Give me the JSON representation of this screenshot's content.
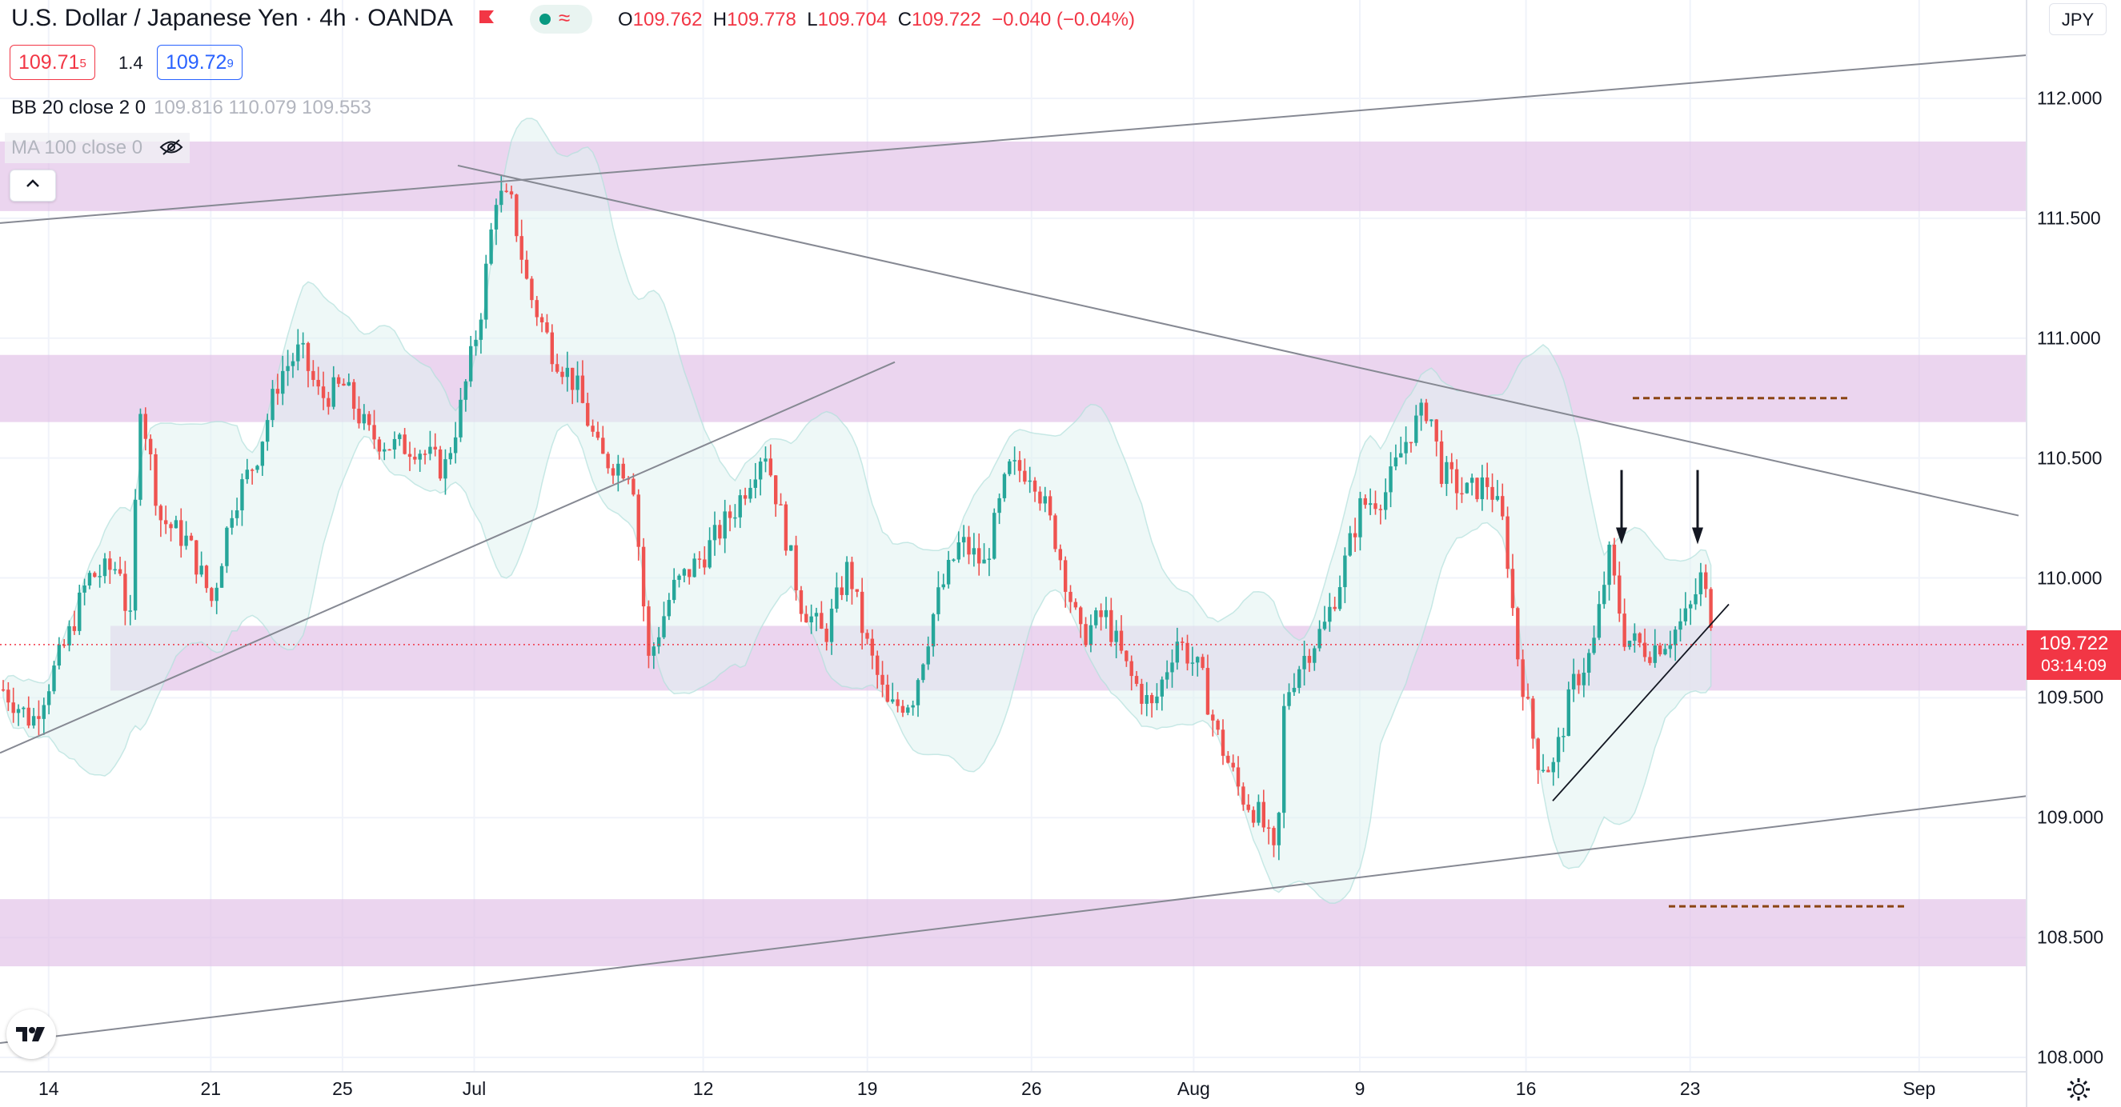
{
  "header": {
    "title": "U.S. Dollar / Japanese Yen · 4h · OANDA",
    "ohlc": {
      "open_label": "O",
      "open": "109.762",
      "high_label": "H",
      "high": "109.778",
      "low_label": "L",
      "low": "109.704",
      "close_label": "C",
      "close": "109.722",
      "change": "−0.040 (−0.04%)"
    }
  },
  "quote": {
    "bid_main": "109.71",
    "bid_sup": "5",
    "spread": "1.4",
    "ask_main": "109.72",
    "ask_sup": "9"
  },
  "indicators": {
    "bb_label": "BB 20 close 2 0",
    "bb_values": "109.816  110.079  109.553",
    "ma_label": "MA 100 close 0"
  },
  "currency": "JPY",
  "last_price": {
    "value": "109.722",
    "countdown": "03:14:09"
  },
  "colors": {
    "up": "#26a69a",
    "down": "#ef5350",
    "zone": "#e1bee7",
    "band_fill": "#e0f2f1",
    "trendline": "#868993",
    "target_line": "#8b4513"
  },
  "chart_data": {
    "type": "candlestick",
    "y_ticks": [
      "112.000",
      "111.500",
      "111.000",
      "110.500",
      "110.000",
      "109.500",
      "109.000",
      "108.500",
      "108.000"
    ],
    "ylim": [
      107.95,
      112.2
    ],
    "x_ticks": [
      {
        "label": "14",
        "pos": 0.024
      },
      {
        "label": "21",
        "pos": 0.104
      },
      {
        "label": "25",
        "pos": 0.169
      },
      {
        "label": "Jul",
        "pos": 0.234
      },
      {
        "label": "12",
        "pos": 0.347
      },
      {
        "label": "19",
        "pos": 0.428
      },
      {
        "label": "26",
        "pos": 0.509
      },
      {
        "label": "Aug",
        "pos": 0.589
      },
      {
        "label": "9",
        "pos": 0.671
      },
      {
        "label": "16",
        "pos": 0.753
      },
      {
        "label": "23",
        "pos": 0.834
      },
      {
        "label": "Sep",
        "pos": 0.947
      }
    ],
    "zones": [
      [
        111.53,
        111.82
      ],
      [
        110.65,
        110.93
      ],
      [
        109.53,
        109.8
      ],
      [
        108.38,
        108.66
      ]
    ],
    "lowest_low": 108.72,
    "highest_high": 111.67
  }
}
